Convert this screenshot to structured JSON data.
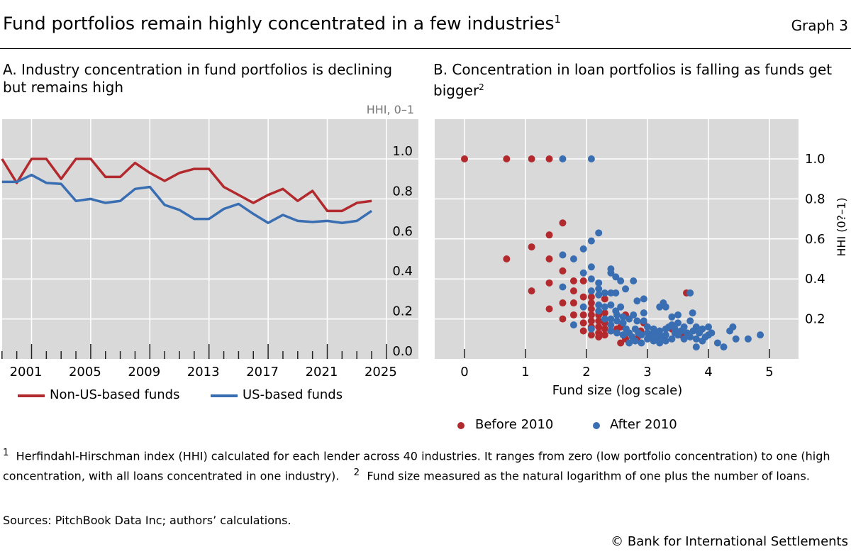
{
  "header": {
    "title": "Fund portfolios remain highly concentrated in a few industries",
    "title_note": "1",
    "graph_label": "Graph 3"
  },
  "footnotes": {
    "note1_marker": "1",
    "note1": "Herfindahl-Hirschman index (HHI) calculated for each lender across 40 industries. It ranges from zero (low portfolio concentration) to one (high concentration, with all loans concentrated in one industry).",
    "note2_marker": "2",
    "note2": "Fund size measured as the natural logarithm of one plus the number of loans.",
    "sources": "Sources: PitchBook Data Inc; authors’ calculations.",
    "copyright": "© Bank for International Settlements"
  },
  "chart_data": [
    {
      "type": "line",
      "title": "A. Industry concentration in fund portfolios is declining but remains high",
      "ylabel": "HHI, 0–1",
      "ylim": [
        0,
        1.2
      ],
      "xlim": [
        1999,
        2026
      ],
      "xticks": [
        "2001",
        "2005",
        "2009",
        "2013",
        "2017",
        "2021",
        "2025"
      ],
      "yticks": [
        "0.0",
        "0.2",
        "0.4",
        "0.6",
        "0.8",
        "1.0"
      ],
      "grid": true,
      "legend": "bottom",
      "x": [
        1999,
        2000,
        2001,
        2002,
        2003,
        2004,
        2005,
        2006,
        2007,
        2008,
        2009,
        2010,
        2011,
        2012,
        2013,
        2014,
        2015,
        2016,
        2017,
        2018,
        2019,
        2020,
        2021,
        2022,
        2023,
        2024
      ],
      "series": [
        {
          "name": "Non-US-based funds",
          "color": "#b22a2e",
          "values": [
            1.0,
            0.88,
            1.0,
            1.0,
            0.9,
            1.0,
            1.0,
            0.91,
            0.91,
            0.98,
            0.93,
            0.89,
            0.93,
            0.95,
            0.95,
            0.86,
            0.82,
            0.78,
            0.82,
            0.85,
            0.79,
            0.84,
            0.74,
            0.74,
            0.78,
            0.79
          ]
        },
        {
          "name": "US-based funds",
          "color": "#3a6eb2",
          "values": [
            0.885,
            0.885,
            0.92,
            0.88,
            0.875,
            0.79,
            0.8,
            0.78,
            0.79,
            0.85,
            0.86,
            0.77,
            0.745,
            0.7,
            0.7,
            0.75,
            0.775,
            0.725,
            0.68,
            0.72,
            0.69,
            0.685,
            0.69,
            0.68,
            0.69,
            0.74
          ]
        }
      ]
    },
    {
      "type": "scatter",
      "title": "B. Concentration in loan portfolios is falling as funds get bigger",
      "title_note": "2",
      "xlabel": "Fund size (log scale)",
      "ylabel": "HHI (0?–1)",
      "xlim": [
        -0.5,
        5.5
      ],
      "ylim": [
        0,
        1.2
      ],
      "xticks": [
        "0",
        "1",
        "2",
        "3",
        "4",
        "5"
      ],
      "yticks": [
        "0.2",
        "0.4",
        "0.6",
        "0.8",
        "1.0"
      ],
      "grid": true,
      "legend": "bottom",
      "series": [
        {
          "name": "Before 2010",
          "color": "#b22a2e",
          "points": [
            [
              0,
              1.0
            ],
            [
              0.69,
              1.0
            ],
            [
              1.1,
              1.0
            ],
            [
              1.39,
              1.0
            ],
            [
              1.61,
              0.68
            ],
            [
              1.39,
              0.62
            ],
            [
              1.1,
              0.56
            ],
            [
              0.69,
              0.5
            ],
            [
              1.39,
              0.5
            ],
            [
              1.61,
              0.44
            ],
            [
              1.39,
              0.38
            ],
            [
              1.1,
              0.34
            ],
            [
              1.39,
              0.25
            ],
            [
              1.61,
              0.28
            ],
            [
              1.61,
              0.2
            ],
            [
              1.79,
              0.39
            ],
            [
              1.95,
              0.39
            ],
            [
              1.79,
              0.34
            ],
            [
              1.79,
              0.28
            ],
            [
              1.79,
              0.22
            ],
            [
              1.95,
              0.31
            ],
            [
              1.95,
              0.22
            ],
            [
              1.95,
              0.18
            ],
            [
              1.95,
              0.14
            ],
            [
              2.08,
              0.31
            ],
            [
              2.08,
              0.28
            ],
            [
              2.08,
              0.25
            ],
            [
              2.08,
              0.22
            ],
            [
              2.08,
              0.19
            ],
            [
              2.08,
              0.16
            ],
            [
              2.08,
              0.12
            ],
            [
              2.2,
              0.22
            ],
            [
              2.2,
              0.19
            ],
            [
              2.2,
              0.16
            ],
            [
              2.2,
              0.13
            ],
            [
              2.2,
              0.11
            ],
            [
              2.3,
              0.3
            ],
            [
              2.3,
              0.23
            ],
            [
              2.3,
              0.18
            ],
            [
              2.3,
              0.15
            ],
            [
              2.3,
              0.12
            ],
            [
              2.4,
              0.14
            ],
            [
              2.5,
              0.15
            ],
            [
              2.56,
              0.16
            ],
            [
              2.56,
              0.08
            ],
            [
              2.64,
              0.1
            ],
            [
              2.64,
              0.22
            ],
            [
              2.83,
              0.1
            ],
            [
              2.89,
              0.14
            ],
            [
              2.94,
              0.18
            ],
            [
              3.4,
              0.15
            ],
            [
              3.5,
              0.12
            ],
            [
              3.56,
              0.12
            ],
            [
              3.64,
              0.33
            ]
          ]
        },
        {
          "name": "After 2010",
          "color": "#3a6eb2",
          "points": [
            [
              1.61,
              1.0
            ],
            [
              2.08,
              1.0
            ],
            [
              2.2,
              0.63
            ],
            [
              2.08,
              0.59
            ],
            [
              1.95,
              0.55
            ],
            [
              1.61,
              0.52
            ],
            [
              1.79,
              0.5
            ],
            [
              2.08,
              0.46
            ],
            [
              1.95,
              0.43
            ],
            [
              2.08,
              0.4
            ],
            [
              2.4,
              0.45
            ],
            [
              2.4,
              0.43
            ],
            [
              2.48,
              0.41
            ],
            [
              2.56,
              0.39
            ],
            [
              2.77,
              0.39
            ],
            [
              2.64,
              0.35
            ],
            [
              2.2,
              0.38
            ],
            [
              2.2,
              0.35
            ],
            [
              2.2,
              0.32
            ],
            [
              2.08,
              0.34
            ],
            [
              1.61,
              0.36
            ],
            [
              2.3,
              0.33
            ],
            [
              2.4,
              0.33
            ],
            [
              2.48,
              0.33
            ],
            [
              2.83,
              0.29
            ],
            [
              2.94,
              0.3
            ],
            [
              3.2,
              0.26
            ],
            [
              3.26,
              0.28
            ],
            [
              3.3,
              0.26
            ],
            [
              3.4,
              0.21
            ],
            [
              3.5,
              0.22
            ],
            [
              3.74,
              0.23
            ],
            [
              3.7,
              0.33
            ],
            [
              2.2,
              0.27
            ],
            [
              2.2,
              0.24
            ],
            [
              1.95,
              0.26
            ],
            [
              1.79,
              0.17
            ],
            [
              2.08,
              0.15
            ],
            [
              2.4,
              0.27
            ],
            [
              2.48,
              0.24
            ],
            [
              2.56,
              0.26
            ],
            [
              2.6,
              0.21
            ],
            [
              2.7,
              0.2
            ],
            [
              2.77,
              0.22
            ],
            [
              2.83,
              0.19
            ],
            [
              2.94,
              0.19
            ],
            [
              2.94,
              0.23
            ],
            [
              3.0,
              0.16
            ],
            [
              3.1,
              0.13
            ],
            [
              3.2,
              0.12
            ],
            [
              3.3,
              0.15
            ],
            [
              3.4,
              0.17
            ],
            [
              3.5,
              0.18
            ],
            [
              3.6,
              0.16
            ],
            [
              3.7,
              0.19
            ],
            [
              3.8,
              0.16
            ],
            [
              3.9,
              0.15
            ],
            [
              4.0,
              0.16
            ],
            [
              4.0,
              0.12
            ],
            [
              4.05,
              0.13
            ],
            [
              4.15,
              0.08
            ],
            [
              4.25,
              0.06
            ],
            [
              4.35,
              0.14
            ],
            [
              4.4,
              0.16
            ],
            [
              4.45,
              0.1
            ],
            [
              4.65,
              0.1
            ],
            [
              4.85,
              0.12
            ],
            [
              3.8,
              0.06
            ],
            [
              3.8,
              0.1
            ],
            [
              3.9,
              0.09
            ],
            [
              3.7,
              0.11
            ],
            [
              3.6,
              0.1
            ],
            [
              3.5,
              0.12
            ],
            [
              3.4,
              0.1
            ],
            [
              3.3,
              0.09
            ],
            [
              3.2,
              0.08
            ],
            [
              3.1,
              0.09
            ],
            [
              3.0,
              0.1
            ],
            [
              2.9,
              0.08
            ],
            [
              2.8,
              0.09
            ],
            [
              2.7,
              0.08
            ],
            [
              2.6,
              0.12
            ],
            [
              2.5,
              0.13
            ],
            [
              2.5,
              0.19
            ],
            [
              2.6,
              0.18
            ],
            [
              2.5,
              0.22
            ],
            [
              2.4,
              0.2
            ],
            [
              2.4,
              0.17
            ],
            [
              2.4,
              0.14
            ],
            [
              2.3,
              0.26
            ],
            [
              2.3,
              0.2
            ],
            [
              2.9,
              0.12
            ],
            [
              3.0,
              0.13
            ],
            [
              3.1,
              0.15
            ],
            [
              3.2,
              0.14
            ],
            [
              3.3,
              0.12
            ],
            [
              3.35,
              0.16
            ],
            [
              3.45,
              0.13
            ],
            [
              3.55,
              0.14
            ],
            [
              3.65,
              0.13
            ],
            [
              3.75,
              0.14
            ],
            [
              3.85,
              0.13
            ],
            [
              3.95,
              0.11
            ],
            [
              2.7,
              0.13
            ],
            [
              2.8,
              0.15
            ],
            [
              2.65,
              0.15
            ],
            [
              2.75,
              0.11
            ],
            [
              2.85,
              0.13
            ],
            [
              3.05,
              0.11
            ],
            [
              3.15,
              0.1
            ],
            [
              3.25,
              0.11
            ],
            [
              3.45,
              0.15
            ]
          ]
        }
      ]
    }
  ]
}
